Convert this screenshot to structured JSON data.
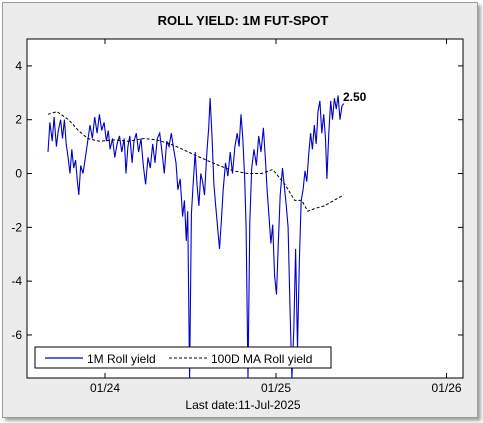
{
  "title": "ROLL YIELD: 1M FUT-SPOT",
  "footer": "Last date:11-Jul-2025",
  "annotation": "2.50",
  "chart_data": {
    "type": "line",
    "title": "ROLL YIELD: 1M FUT-SPOT",
    "xlabel": "",
    "ylabel": "",
    "ylim": [
      -7.6,
      5.0
    ],
    "y_ticks": [
      4,
      2,
      0,
      -2,
      -4,
      -6
    ],
    "x_ticks": [
      "01/24",
      "01/25",
      "01/26"
    ],
    "grid": false,
    "legend_position": "bottom-left",
    "series": [
      {
        "name": "1M Roll yield",
        "color": "#0000cc",
        "style": "solid",
        "points": [
          [
            "2023-09-01",
            0.8
          ],
          [
            "2023-09-05",
            1.9
          ],
          [
            "2023-09-10",
            1.2
          ],
          [
            "2023-09-14",
            2.1
          ],
          [
            "2023-09-19",
            1.0
          ],
          [
            "2023-09-23",
            1.6
          ],
          [
            "2023-09-28",
            2.0
          ],
          [
            "2023-10-02",
            1.3
          ],
          [
            "2023-10-06",
            2.0
          ],
          [
            "2023-10-10",
            1.1
          ],
          [
            "2023-10-14",
            0.6
          ],
          [
            "2023-10-18",
            0.0
          ],
          [
            "2023-10-22",
            0.9
          ],
          [
            "2023-10-26",
            0.2
          ],
          [
            "2023-10-30",
            0.5
          ],
          [
            "2023-11-03",
            -0.3
          ],
          [
            "2023-11-06",
            -0.8
          ],
          [
            "2023-11-10",
            0.3
          ],
          [
            "2023-11-15",
            0.0
          ],
          [
            "2023-11-20",
            0.6
          ],
          [
            "2023-11-25",
            1.2
          ],
          [
            "2023-11-30",
            1.8
          ],
          [
            "2023-12-05",
            1.3
          ],
          [
            "2023-12-10",
            2.1
          ],
          [
            "2023-12-15",
            1.5
          ],
          [
            "2023-12-20",
            2.2
          ],
          [
            "2023-12-25",
            1.6
          ],
          [
            "2023-12-30",
            1.9
          ],
          [
            "2024-01-04",
            1.2
          ],
          [
            "2024-01-08",
            1.6
          ],
          [
            "2024-01-12",
            0.9
          ],
          [
            "2024-01-17",
            1.3
          ],
          [
            "2024-01-22",
            0.6
          ],
          [
            "2024-01-27",
            1.1
          ],
          [
            "2024-02-01",
            1.4
          ],
          [
            "2024-02-06",
            0.8
          ],
          [
            "2024-02-11",
            1.3
          ],
          [
            "2024-02-15",
            0.0
          ],
          [
            "2024-02-19",
            1.0
          ],
          [
            "2024-02-23",
            1.4
          ],
          [
            "2024-02-28",
            0.4
          ],
          [
            "2024-03-03",
            1.2
          ],
          [
            "2024-03-08",
            1.5
          ],
          [
            "2024-03-13",
            0.8
          ],
          [
            "2024-03-18",
            1.3
          ],
          [
            "2024-03-23",
            0.3
          ],
          [
            "2024-03-28",
            -0.4
          ],
          [
            "2024-04-02",
            0.6
          ],
          [
            "2024-04-07",
            0.2
          ],
          [
            "2024-04-12",
            1.1
          ],
          [
            "2024-04-17",
            0.4
          ],
          [
            "2024-04-22",
            1.3
          ],
          [
            "2024-04-27",
            1.5
          ],
          [
            "2024-05-02",
            0.8
          ],
          [
            "2024-05-07",
            0.0
          ],
          [
            "2024-05-12",
            1.2
          ],
          [
            "2024-05-17",
            1.0
          ],
          [
            "2024-05-22",
            1.5
          ],
          [
            "2024-05-27",
            0.9
          ],
          [
            "2024-06-01",
            0.4
          ],
          [
            "2024-06-05",
            -0.6
          ],
          [
            "2024-06-10",
            -0.2
          ],
          [
            "2024-06-15",
            -1.6
          ],
          [
            "2024-06-19",
            -1.0
          ],
          [
            "2024-06-23",
            -2.5
          ],
          [
            "2024-06-26",
            -1.4
          ],
          [
            "2024-06-30",
            -7.6
          ],
          [
            "2024-07-04",
            -1.5
          ],
          [
            "2024-07-08",
            -0.3
          ],
          [
            "2024-07-12",
            0.8
          ],
          [
            "2024-07-16",
            -0.4
          ],
          [
            "2024-07-20",
            -1.2
          ],
          [
            "2024-07-24",
            0.0
          ],
          [
            "2024-07-28",
            -0.3
          ],
          [
            "2024-08-01",
            -0.8
          ],
          [
            "2024-08-06",
            0.8
          ],
          [
            "2024-08-10",
            1.7
          ],
          [
            "2024-08-13",
            2.8
          ],
          [
            "2024-08-17",
            1.4
          ],
          [
            "2024-08-21",
            -0.4
          ],
          [
            "2024-08-25",
            -1.2
          ],
          [
            "2024-08-29",
            -2.0
          ],
          [
            "2024-09-02",
            -2.8
          ],
          [
            "2024-09-06",
            -1.8
          ],
          [
            "2024-09-10",
            -0.6
          ],
          [
            "2024-09-15",
            0.4
          ],
          [
            "2024-09-20",
            -0.1
          ],
          [
            "2024-09-25",
            0.8
          ],
          [
            "2024-09-30",
            0.0
          ],
          [
            "2024-10-05",
            1.0
          ],
          [
            "2024-10-10",
            1.5
          ],
          [
            "2024-10-14",
            1.0
          ],
          [
            "2024-10-18",
            2.2
          ],
          [
            "2024-10-22",
            1.3
          ],
          [
            "2024-10-26",
            -0.2
          ],
          [
            "2024-10-29",
            -2.0
          ],
          [
            "2024-11-02",
            -7.6
          ],
          [
            "2024-11-06",
            -1.8
          ],
          [
            "2024-11-10",
            0.2
          ],
          [
            "2024-11-15",
            0.9
          ],
          [
            "2024-11-20",
            0.3
          ],
          [
            "2024-11-25",
            1.4
          ],
          [
            "2024-11-30",
            0.8
          ],
          [
            "2024-12-05",
            1.7
          ],
          [
            "2024-12-09",
            0.6
          ],
          [
            "2024-12-13",
            -0.6
          ],
          [
            "2024-12-17",
            -1.6
          ],
          [
            "2024-12-21",
            -2.6
          ],
          [
            "2024-12-25",
            -1.9
          ],
          [
            "2024-12-29",
            -3.8
          ],
          [
            "2025-01-02",
            -4.5
          ],
          [
            "2025-01-06",
            -2.6
          ],
          [
            "2025-01-10",
            -0.8
          ],
          [
            "2025-01-15",
            0.2
          ],
          [
            "2025-01-19",
            -0.5
          ],
          [
            "2025-01-23",
            -1.2
          ],
          [
            "2025-01-27",
            -2.0
          ],
          [
            "2025-01-31",
            -5.0
          ],
          [
            "2025-02-04",
            -7.6
          ],
          [
            "2025-02-08",
            -5.8
          ],
          [
            "2025-02-12",
            -2.8
          ],
          [
            "2025-02-16",
            -6.5
          ],
          [
            "2025-02-20",
            -3.2
          ],
          [
            "2025-02-24",
            -1.0
          ],
          [
            "2025-02-28",
            -0.6
          ],
          [
            "2025-03-04",
            0.1
          ],
          [
            "2025-03-08",
            -0.3
          ],
          [
            "2025-03-12",
            0.7
          ],
          [
            "2025-03-16",
            1.5
          ],
          [
            "2025-03-20",
            0.9
          ],
          [
            "2025-03-24",
            1.8
          ],
          [
            "2025-03-28",
            1.1
          ],
          [
            "2025-04-01",
            2.3
          ],
          [
            "2025-04-05",
            2.7
          ],
          [
            "2025-04-09",
            1.5
          ],
          [
            "2025-04-13",
            2.2
          ],
          [
            "2025-04-17",
            1.3
          ],
          [
            "2025-04-20",
            -0.2
          ],
          [
            "2025-04-24",
            1.5
          ],
          [
            "2025-04-28",
            2.7
          ],
          [
            "2025-05-02",
            2.0
          ],
          [
            "2025-05-06",
            2.8
          ],
          [
            "2025-05-10",
            2.4
          ],
          [
            "2025-05-14",
            2.9
          ],
          [
            "2025-05-18",
            2.0
          ],
          [
            "2025-05-22",
            2.5
          ],
          [
            "2025-05-26",
            2.6
          ]
        ]
      },
      {
        "name": "100D MA Roll yield",
        "color": "#000000",
        "style": "dashed",
        "points": [
          [
            "2023-09-01",
            2.2
          ],
          [
            "2023-09-20",
            2.3
          ],
          [
            "2023-10-15",
            2.0
          ],
          [
            "2023-11-05",
            1.6
          ],
          [
            "2023-11-25",
            1.3
          ],
          [
            "2023-12-20",
            1.2
          ],
          [
            "2024-01-20",
            1.25
          ],
          [
            "2024-02-20",
            1.2
          ],
          [
            "2024-03-25",
            1.3
          ],
          [
            "2024-04-20",
            1.25
          ],
          [
            "2024-05-20",
            1.1
          ],
          [
            "2024-06-15",
            0.9
          ],
          [
            "2024-07-10",
            0.7
          ],
          [
            "2024-08-05",
            0.5
          ],
          [
            "2024-09-01",
            0.3
          ],
          [
            "2024-10-01",
            0.1
          ],
          [
            "2024-11-01",
            0.0
          ],
          [
            "2024-12-01",
            0.0
          ],
          [
            "2024-12-25",
            0.15
          ],
          [
            "2025-01-20",
            -0.4
          ],
          [
            "2025-02-10",
            -1.0
          ],
          [
            "2025-02-25",
            -1.0
          ],
          [
            "2025-03-10",
            -1.4
          ],
          [
            "2025-03-25",
            -1.3
          ],
          [
            "2025-04-15",
            -1.2
          ],
          [
            "2025-05-05",
            -1.0
          ],
          [
            "2025-05-26",
            -0.8
          ]
        ]
      }
    ]
  }
}
